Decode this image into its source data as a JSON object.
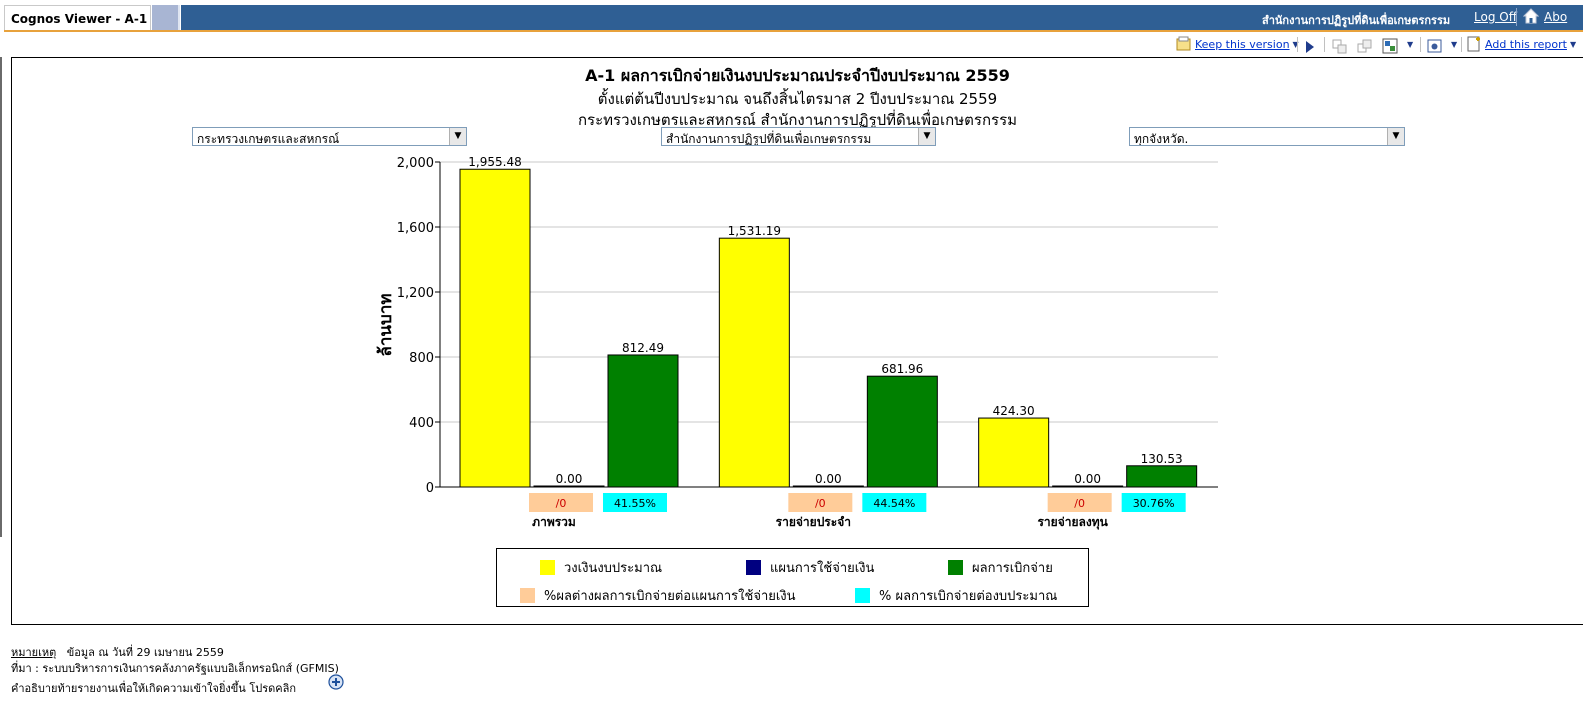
{
  "window": {
    "tab_title": "Cognos Viewer - A-1",
    "org_name": "สำนักงานการปฏิรูปที่ดินเพื่อเกษตรกรรม",
    "logoff": "Log Off",
    "about": "Abo",
    "home_icon": "home-icon"
  },
  "toolbar": {
    "keep_version": "Keep this version",
    "add_report": "Add this report",
    "icons": [
      "keep-version-icon",
      "run-icon",
      "drill-down-icon",
      "drill-up-icon",
      "related-links-icon",
      "view-format-icon",
      "add-report-icon"
    ]
  },
  "report": {
    "title": "A-1 ผลการเบิกจ่ายเงินงบประมาณประจำปีงบประมาณ 2559",
    "subtitle1": "ตั้งแต่ต้นปีงบประมาณ จนถึงสิ้นไตรมาส 2 ปีงบประมาณ 2559",
    "subtitle2": "กระทรวงเกษตรและสหกรณ์ สำนักงานการปฏิรูปที่ดินเพื่อเกษตรกรรม",
    "filters": {
      "ministry": "กระทรวงเกษตรและสหกรณ์",
      "department": "สำนักงานการปฏิรูปที่ดินเพื่อเกษตรกรรม",
      "province": "ทุกจังหวัด."
    }
  },
  "chart_data": {
    "type": "bar",
    "ylabel": "ล้านบาท",
    "ylim": [
      0,
      2000
    ],
    "yticks": [
      "0",
      "400",
      "800",
      "1,200",
      "1,600",
      "2,000"
    ],
    "ytick_values": [
      0,
      400,
      800,
      1200,
      1600,
      2000
    ],
    "categories": [
      "ภาพรวม",
      "รายจ่ายประจำ",
      "รายจ่ายลงทุน"
    ],
    "series": [
      {
        "name": "วงเงินงบประมาณ",
        "color": "#ffff00",
        "values": [
          1955.48,
          1531.19,
          424.3
        ],
        "labels": [
          "1,955.48",
          "1,531.19",
          "424.30"
        ]
      },
      {
        "name": "แผนการใช้จ่ายเงิน",
        "color": "#000080",
        "values": [
          0,
          0,
          0
        ],
        "labels": [
          "0.00",
          "0.00",
          "0.00"
        ]
      },
      {
        "name": "ผลการเบิกจ่าย",
        "color": "#008000",
        "values": [
          812.49,
          681.96,
          130.53
        ],
        "labels": [
          "812.49",
          "681.96",
          "130.53"
        ]
      }
    ],
    "pct_series": [
      {
        "name": "%ผลต่างผลการเบิกจ่ายต่อแผนการใช้จ่ายเงิน",
        "color": "#ffcc99",
        "labels": [
          "/0",
          "/0",
          "/0"
        ]
      },
      {
        "name": "% ผลการเบิกจ่ายต่องบประมาณ",
        "color": "#00ffff",
        "labels": [
          "41.55%",
          "44.54%",
          "30.76%"
        ]
      }
    ],
    "grid": true,
    "legend_position": "bottom"
  },
  "footer": {
    "note_label": "หมายเหตุ",
    "note_text": "ข้อมูล ณ วันที่ 29 เมษายน 2559",
    "source": "ที่มา : ระบบบริหารการเงินการคลังภาครัฐแบบอิเล็กทรอนิกส์ (GFMIS)",
    "explain": "คำอธิบายท้ายรายงานเพื่อให้เกิดความเข้าใจยิ่งขึ้น โปรดคลิก",
    "plus_icon": "plus-circle-icon"
  }
}
